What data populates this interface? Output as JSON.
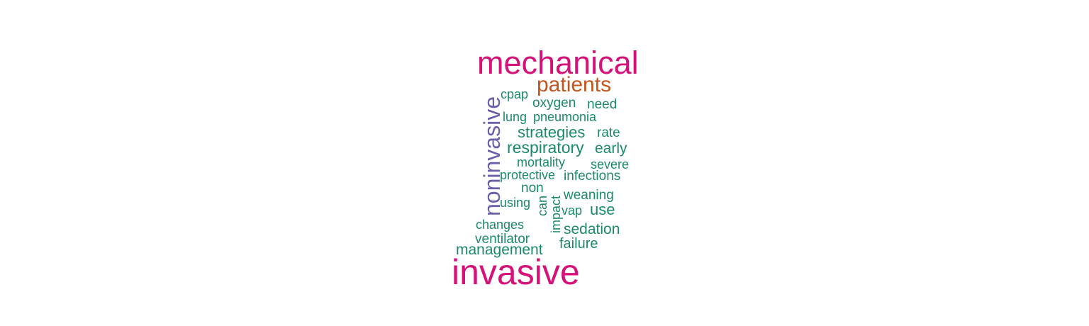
{
  "colors": {
    "magenta": "#d6117a",
    "orange": "#c4541b",
    "purple": "#6a5fa8",
    "green": "#1b8a6a"
  },
  "words": [
    {
      "text": "mechanical",
      "color": "magenta"
    },
    {
      "text": "patients",
      "color": "orange"
    },
    {
      "text": "noninvasive",
      "color": "purple"
    },
    {
      "text": "cpap",
      "color": "green"
    },
    {
      "text": "oxygen",
      "color": "green"
    },
    {
      "text": "need",
      "color": "green"
    },
    {
      "text": "lung",
      "color": "green"
    },
    {
      "text": "pneumonia",
      "color": "green"
    },
    {
      "text": "strategies",
      "color": "green"
    },
    {
      "text": "rate",
      "color": "green"
    },
    {
      "text": "respiratory",
      "color": "green"
    },
    {
      "text": "early",
      "color": "green"
    },
    {
      "text": "mortality",
      "color": "green"
    },
    {
      "text": "severe",
      "color": "green"
    },
    {
      "text": "protective",
      "color": "green"
    },
    {
      "text": "infections",
      "color": "green"
    },
    {
      "text": "non",
      "color": "green"
    },
    {
      "text": "weaning",
      "color": "green"
    },
    {
      "text": "using",
      "color": "green"
    },
    {
      "text": "can",
      "color": "green"
    },
    {
      "text": "impact",
      "color": "green"
    },
    {
      "text": "vap",
      "color": "green"
    },
    {
      "text": "use",
      "color": "green"
    },
    {
      "text": "changes",
      "color": "green"
    },
    {
      "text": "sedation",
      "color": "green"
    },
    {
      "text": "ventilator",
      "color": "green"
    },
    {
      "text": "failure",
      "color": "green"
    },
    {
      "text": "management",
      "color": "green"
    },
    {
      "text": "invasive",
      "color": "magenta"
    }
  ]
}
